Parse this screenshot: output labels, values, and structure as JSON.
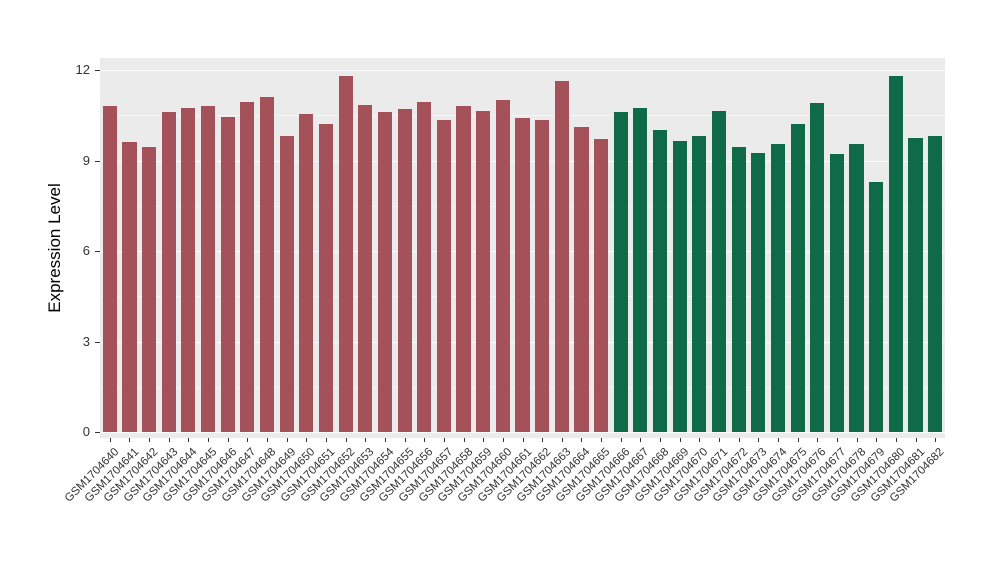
{
  "chart_data": {
    "type": "bar",
    "title": "",
    "xlabel": "",
    "ylabel": "Expression Level",
    "ylim": [
      0,
      12
    ],
    "yticks": [
      0,
      3,
      6,
      9,
      12
    ],
    "ytick_labels": [
      "0",
      "3",
      "6",
      "9",
      "12"
    ],
    "grid": true,
    "legend_position": "none",
    "panel_background": "#EBEBEB",
    "gridline_color": "#FFFFFF",
    "axis_text_color": "#333333",
    "categories": [
      "GSM1704640",
      "GSM1704641",
      "GSM1704642",
      "GSM1704643",
      "GSM1704644",
      "GSM1704645",
      "GSM1704646",
      "GSM1704647",
      "GSM1704648",
      "GSM1704649",
      "GSM1704650",
      "GSM1704651",
      "GSM1704652",
      "GSM1704653",
      "GSM1704654",
      "GSM1704655",
      "GSM1704656",
      "GSM1704657",
      "GSM1704658",
      "GSM1704659",
      "GSM1704660",
      "GSM1704661",
      "GSM1704662",
      "GSM1704663",
      "GSM1704664",
      "GSM1704665",
      "GSM1704666",
      "GSM1704667",
      "GSM1704668",
      "GSM1704669",
      "GSM1704670",
      "GSM1704671",
      "GSM1704672",
      "GSM1704673",
      "GSM1704674",
      "GSM1704675",
      "GSM1704676",
      "GSM1704677",
      "GSM1704678",
      "GSM1704679",
      "GSM1704680",
      "GSM1704681",
      "GSM1704682"
    ],
    "values": [
      10.8,
      9.6,
      9.45,
      10.6,
      10.75,
      10.8,
      10.45,
      10.95,
      11.1,
      9.8,
      10.55,
      10.2,
      11.8,
      10.85,
      10.6,
      10.7,
      10.95,
      10.35,
      10.8,
      10.65,
      11.0,
      10.4,
      10.35,
      11.65,
      10.1,
      9.7,
      10.6,
      10.75,
      10.0,
      9.65,
      9.8,
      10.65,
      9.45,
      9.25,
      9.55,
      10.2,
      10.9,
      9.2,
      9.55,
      8.3,
      11.8,
      9.75,
      9.8
    ],
    "groups": [
      {
        "name": "group-1",
        "color": "#A4515A",
        "start_index": 0,
        "end_index": 25
      },
      {
        "name": "group-2",
        "color": "#0F6B47",
        "start_index": 26,
        "end_index": 42
      }
    ]
  }
}
